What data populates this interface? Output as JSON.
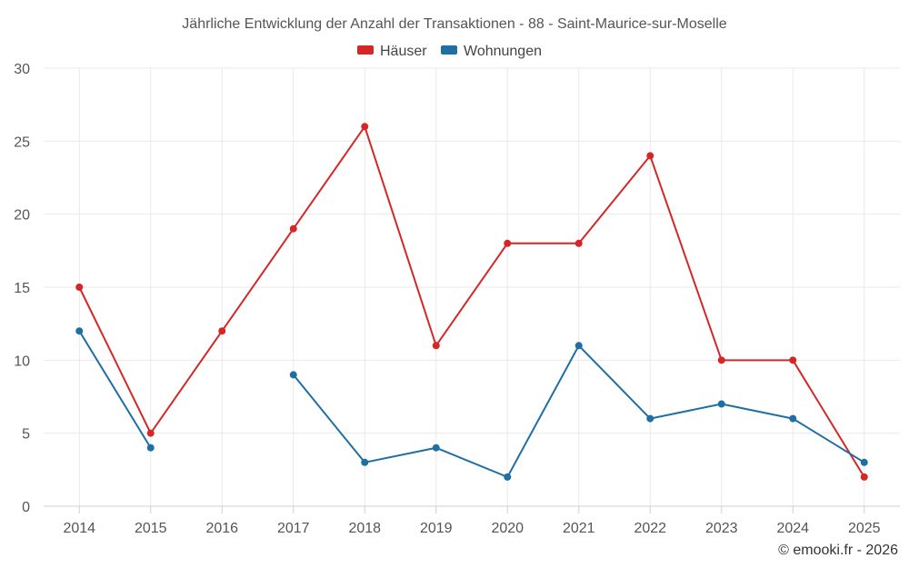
{
  "chart_data": {
    "type": "line",
    "title": "Jährliche Entwicklung der Anzahl der Transaktionen - 88 - Saint-Maurice-sur-Moselle",
    "xlabel": "",
    "ylabel": "",
    "categories": [
      "2014",
      "2015",
      "2016",
      "2017",
      "2018",
      "2019",
      "2020",
      "2021",
      "2022",
      "2023",
      "2024",
      "2025"
    ],
    "ylim": [
      0,
      30
    ],
    "yticks": [
      0,
      5,
      10,
      15,
      20,
      25,
      30
    ],
    "grid": true,
    "legend_position": "top-center",
    "series": [
      {
        "name": "Häuser",
        "color": "#d62728",
        "values": [
          15,
          5,
          12,
          19,
          26,
          11,
          18,
          18,
          24,
          10,
          10,
          2
        ]
      },
      {
        "name": "Wohnungen",
        "color": "#1f6fa3",
        "values": [
          12,
          4,
          null,
          9,
          3,
          4,
          2,
          11,
          6,
          7,
          6,
          3
        ]
      }
    ]
  },
  "credit": "© emooki.fr - 2026"
}
